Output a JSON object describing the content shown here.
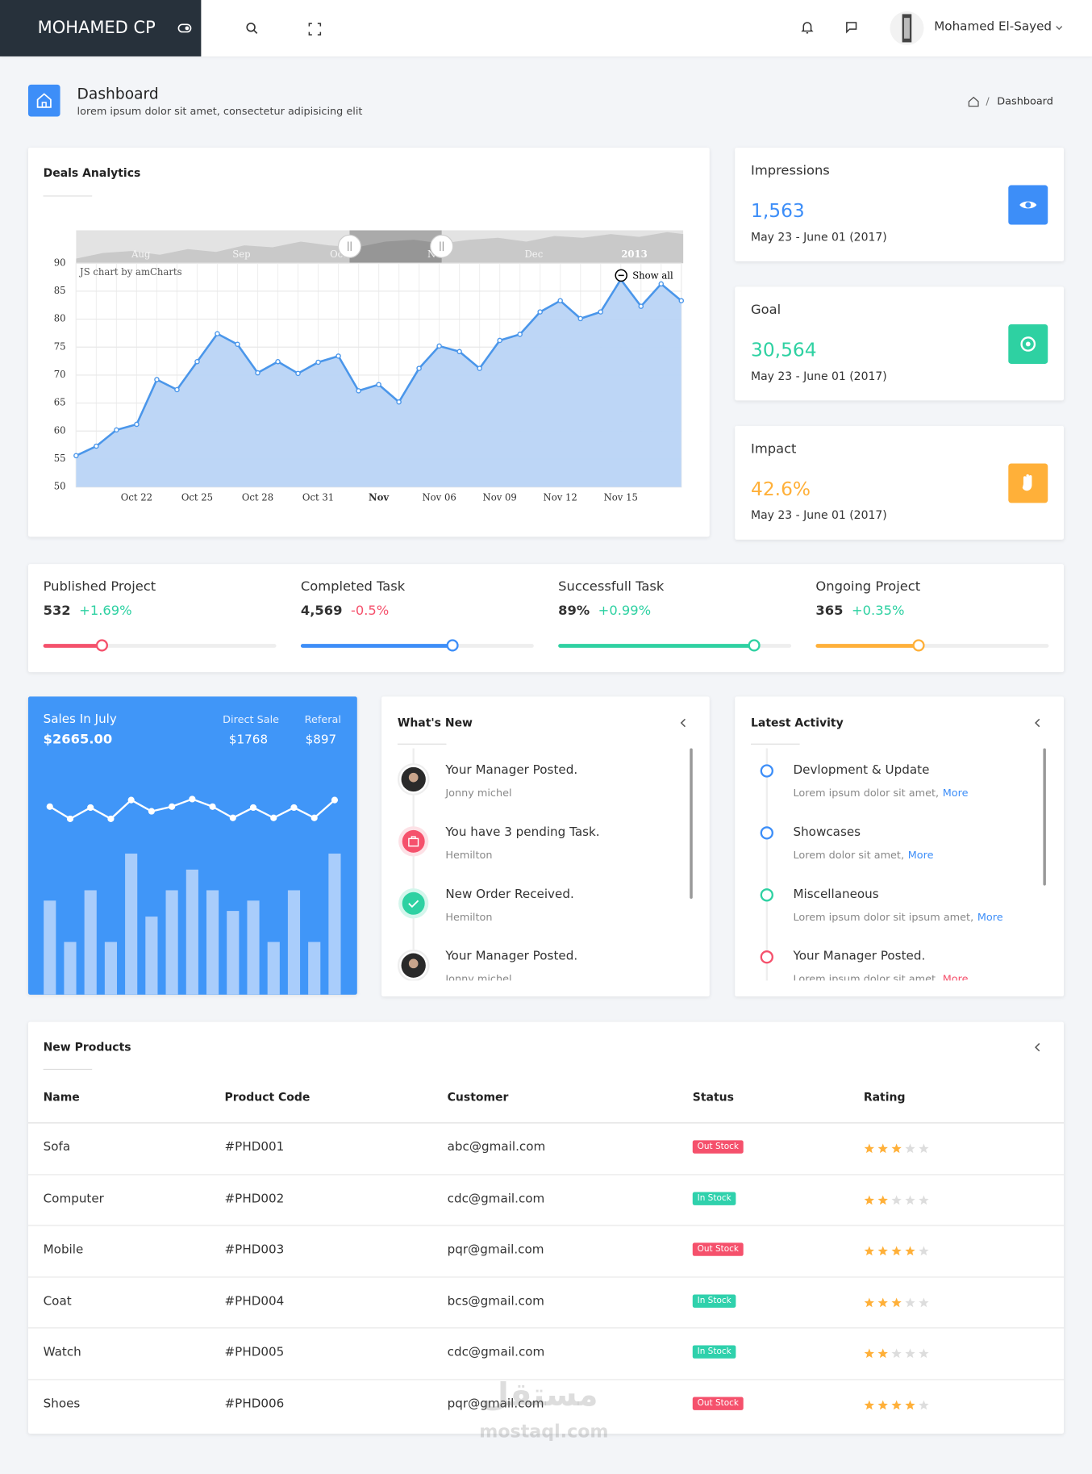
{
  "header": {
    "brand": "MOHAMED CP",
    "user": "Mohamed El-Sayed"
  },
  "page_header": {
    "title": "Dashboard",
    "subtitle": "lorem ipsum dolor sit amet, consectetur adipisicing elit",
    "breadcrumb": "Dashboard"
  },
  "chart_data": [
    {
      "type": "area",
      "title": "Deals Analytics",
      "credit": "JS chart by amCharts",
      "zoom_label": "Show all",
      "scrollbar_labels": [
        "Aug",
        "Sep",
        "Oct",
        "Nov",
        "Dec",
        "2013"
      ],
      "categories": [
        null,
        null,
        null,
        "Oct 22",
        null,
        null,
        "Oct 25",
        null,
        null,
        "Oct 28",
        null,
        null,
        "Oct 31",
        null,
        null,
        "Nov",
        null,
        null,
        "Nov 06",
        null,
        null,
        "Nov 09",
        null,
        null,
        "Nov 12",
        null,
        null,
        "Nov 15",
        null,
        null,
        null
      ],
      "values": [
        55.6,
        57.3,
        60.2,
        61.2,
        69.2,
        67.4,
        72.4,
        77.4,
        75.5,
        70.4,
        72.4,
        70.3,
        72.3,
        73.4,
        67.2,
        68.3,
        65.2,
        71.2,
        75.2,
        74.2,
        71.2,
        76.2,
        77.3,
        81.3,
        83.3,
        80.1,
        81.3,
        87.1,
        82.3,
        86.3,
        83.3
      ],
      "ylim": [
        50,
        90
      ],
      "yticks": [
        50,
        55,
        60,
        65,
        70,
        75,
        80,
        85,
        90
      ],
      "grid": true,
      "color": "#4a96ea",
      "fill": "#b9d4f5"
    },
    {
      "type": "line",
      "values": [
        22,
        9,
        21,
        9,
        29,
        17,
        22,
        30,
        22,
        10,
        21,
        10,
        21,
        10,
        29
      ],
      "color": "#ffffff"
    },
    {
      "type": "bar",
      "values": [
        100,
        56,
        111,
        56,
        150,
        83,
        111,
        133,
        111,
        89,
        100,
        56,
        111,
        56,
        150
      ],
      "color": "#a9cdfb"
    }
  ],
  "sales_card": {
    "title": "Sales In July",
    "total": "$2665.00",
    "direct_sale_label": "Direct Sale",
    "direct_sale": "$1768",
    "referal_label": "Referal",
    "referal": "$897"
  },
  "stats": [
    {
      "label": "Impressions",
      "value": "1,563",
      "period": "May 23 - June 01 (2017)",
      "color": "#3d8ef8"
    },
    {
      "label": "Goal",
      "value": "30,564",
      "period": "May 23 - June 01 (2017)",
      "color": "#2ed1a2"
    },
    {
      "label": "Impact",
      "value": "42.6%",
      "period": "May 23 - June 01 (2017)",
      "color": "#ffb039"
    }
  ],
  "progress": [
    {
      "label": "Published Project",
      "value": "532",
      "change": "+1.69%",
      "progress": 25,
      "color": "#f5516c"
    },
    {
      "label": "Completed Task",
      "value": "4,569",
      "change": "-0.5%",
      "progress": 65,
      "color": "#3d8ef8"
    },
    {
      "label": "Successfull Task",
      "value": "89%",
      "change": "+0.99%",
      "progress": 84,
      "color": "#2ed1a2"
    },
    {
      "label": "Ongoing Project",
      "value": "365",
      "change": "+0.35%",
      "progress": 44,
      "color": "#ffb039"
    }
  ],
  "whats_new": {
    "title": "What's New",
    "items": [
      {
        "title": "Your Manager Posted.",
        "subtitle": "Jonny michel"
      },
      {
        "title": "You have 3 pending Task.",
        "subtitle": "Hemilton"
      },
      {
        "title": "New Order Received.",
        "subtitle": "Hemilton"
      },
      {
        "title": "Your Manager Posted.",
        "subtitle": "Jonny michel"
      }
    ]
  },
  "latest_activity": {
    "title": "Latest Activity",
    "items": [
      {
        "title": "Devlopment & Update",
        "text": "Lorem ipsum dolor sit amet,",
        "link": "More",
        "color": "#3d8ef8",
        "link_color": "#3d8ef8"
      },
      {
        "title": "Showcases",
        "text": "Lorem dolor sit amet,",
        "link": "More",
        "color": "#3d8ef8",
        "link_color": "#3d8ef8"
      },
      {
        "title": "Miscellaneous",
        "text": "Lorem ipsum dolor sit ipsum amet,",
        "link": "More",
        "color": "#2ed1a2",
        "link_color": "#3d8ef8"
      },
      {
        "title": "Your Manager Posted.",
        "text": "Lorem ipsum dolor sit amet,",
        "link": "More",
        "color": "#f5516c",
        "link_color": "#f5516c"
      }
    ]
  },
  "products": {
    "title": "New Products",
    "columns": [
      "Name",
      "Product Code",
      "Customer",
      "Status",
      "Rating"
    ],
    "rating_max": 5,
    "rows": [
      {
        "name": "Sofa",
        "code": "#PHD001",
        "customer": "abc@gmail.com",
        "status": "Out Stock",
        "status_color": "#f5516c",
        "rating": 3
      },
      {
        "name": "Computer",
        "code": "#PHD002",
        "customer": "cdc@gmail.com",
        "status": "In Stock",
        "status_color": "#2fd1ac",
        "rating": 2
      },
      {
        "name": "Mobile",
        "code": "#PHD003",
        "customer": "pqr@gmail.com",
        "status": "Out Stock",
        "status_color": "#f5516c",
        "rating": 4
      },
      {
        "name": "Coat",
        "code": "#PHD004",
        "customer": "bcs@gmail.com",
        "status": "In Stock",
        "status_color": "#2fd1ac",
        "rating": 3
      },
      {
        "name": "Watch",
        "code": "#PHD005",
        "customer": "cdc@gmail.com",
        "status": "In Stock",
        "status_color": "#2fd1ac",
        "rating": 2
      },
      {
        "name": "Shoes",
        "code": "#PHD006",
        "customer": "pqr@gmail.com",
        "status": "Out Stock",
        "status_color": "#f5516c",
        "rating": 4
      }
    ]
  },
  "watermark": {
    "arabic": "مستقل",
    "latin": "mostaql.com"
  }
}
